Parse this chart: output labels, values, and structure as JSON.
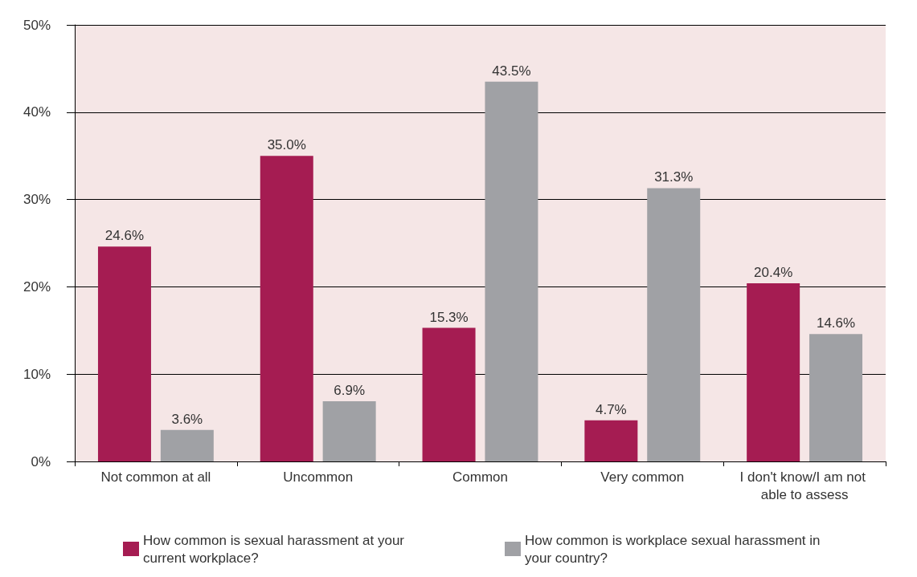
{
  "chart_data": {
    "type": "bar",
    "categories": [
      "Not common at all",
      "Uncommon",
      "Common",
      "Very common",
      "I don't know/I am not able to assess"
    ],
    "series": [
      {
        "name": "How common is sexual harassment at your current workplace?",
        "color": "#a51c52",
        "values": [
          24.6,
          35.0,
          15.3,
          4.7,
          20.4
        ],
        "value_labels": [
          "24.6%",
          "35.0%",
          "15.3%",
          "4.7%",
          "20.4%"
        ]
      },
      {
        "name": "How common is workplace sexual harassment in your country?",
        "color": "#a0a1a5",
        "values": [
          3.6,
          6.9,
          43.5,
          31.3,
          14.6
        ],
        "value_labels": [
          "3.6%",
          "6.9%",
          "43.5%",
          "31.3%",
          "14.6%"
        ]
      }
    ],
    "ylim": [
      0,
      50
    ],
    "yticks": [
      {
        "value": 0,
        "label": "0%"
      },
      {
        "value": 10,
        "label": "10%"
      },
      {
        "value": 20,
        "label": "20%"
      },
      {
        "value": 30,
        "label": "30%"
      },
      {
        "value": 40,
        "label": "40%"
      },
      {
        "value": 50,
        "label": "50%"
      }
    ],
    "grid": "y",
    "legend": "bottom"
  }
}
